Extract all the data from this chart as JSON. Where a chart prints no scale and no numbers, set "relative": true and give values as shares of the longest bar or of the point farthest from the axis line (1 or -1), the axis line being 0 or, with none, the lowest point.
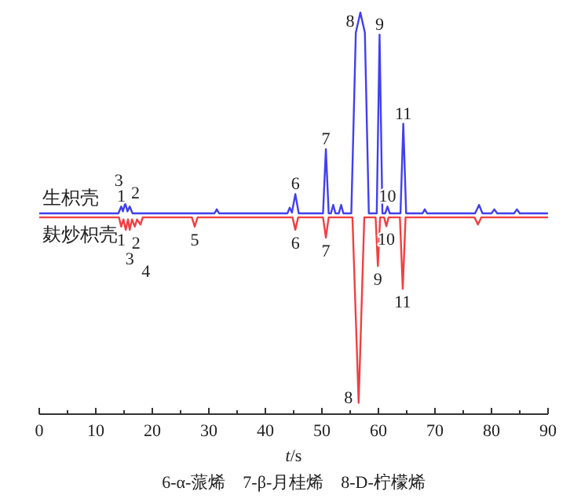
{
  "chart_data": {
    "type": "line",
    "relative": true,
    "tick_labels": "x",
    "xlabel": "t/s",
    "xlim": [
      0,
      90
    ],
    "xticks": [
      0,
      {
        "value": 5,
        "label": null
      },
      10,
      {
        "value": 15,
        "label": null
      },
      20,
      {
        "value": 25,
        "label": null
      },
      30,
      {
        "value": 35,
        "label": null
      },
      40,
      {
        "value": 45,
        "label": null
      },
      50,
      {
        "value": 55,
        "label": null
      },
      60,
      {
        "value": 65,
        "label": null
      },
      70,
      {
        "value": 75,
        "label": null
      },
      80,
      {
        "value": 85,
        "label": null
      },
      90
    ],
    "series": [
      {
        "name": "生枳壳",
        "color": "#4040f0",
        "x": [
          0,
          14.0,
          14.5,
          14.8,
          15.2,
          15.6,
          16.0,
          16.5,
          31.0,
          31.4,
          31.8,
          43.9,
          44.3,
          44.7,
          45.3,
          45.9,
          50.2,
          50.7,
          51.2,
          51.6,
          52.0,
          52.4,
          53.0,
          53.4,
          53.8,
          55.2,
          56.0,
          56.8,
          57.6,
          58.3,
          59.7,
          60.2,
          60.7,
          61.2,
          61.6,
          62.0,
          63.9,
          64.4,
          64.9,
          67.8,
          68.2,
          68.6,
          77.1,
          77.8,
          78.4,
          80,
          80.5,
          81,
          84,
          84.5,
          85,
          90
        ],
        "values": [
          0.5,
          0.5,
          0.517,
          0.505,
          0.525,
          0.505,
          0.517,
          0.5,
          0.5,
          0.51,
          0.5,
          0.5,
          0.514,
          0.502,
          0.548,
          0.5,
          0.5,
          0.66,
          0.5,
          0.5,
          0.521,
          0.5,
          0.5,
          0.521,
          0.5,
          0.5,
          0.95,
          1,
          0.95,
          0.5,
          0.5,
          0.945,
          0.5,
          0.5,
          0.517,
          0.5,
          0.5,
          0.723,
          0.5,
          0.5,
          0.51,
          0.5,
          0.5,
          0.521,
          0.5,
          0.5,
          0.51,
          0.5,
          0.5,
          0.51,
          0.5,
          0.5
        ]
      },
      {
        "name": "麸炒枳壳",
        "color": "#f04040",
        "x": [
          0,
          14.1,
          14.5,
          14.9,
          15.3,
          15.7,
          16.0,
          16.4,
          16.9,
          17.3,
          17.9,
          18.3,
          27.0,
          27.5,
          28.0,
          44.8,
          45.3,
          45.8,
          50.2,
          50.7,
          51.2,
          55.4,
          56.5,
          57.5,
          59.5,
          59.9,
          60.3,
          61.0,
          61.4,
          61.8,
          63.8,
          64.3,
          64.8,
          77.0,
          77.6,
          78.2,
          90
        ],
        "values": [
          0.49,
          0.49,
          0.467,
          0.485,
          0.459,
          0.485,
          0.459,
          0.485,
          0.467,
          0.485,
          0.472,
          0.49,
          0.49,
          0.467,
          0.49,
          0.49,
          0.459,
          0.49,
          0.49,
          0.44,
          0.49,
          0.49,
          0.028,
          0.49,
          0.49,
          0.369,
          0.49,
          0.49,
          0.468,
          0.49,
          0.49,
          0.312,
          0.49,
          0.49,
          0.472,
          0.49,
          0.49
        ]
      }
    ],
    "annotations": [
      {
        "text": "1",
        "x": 14.5,
        "y": 0.517
      },
      {
        "text": "2",
        "x": 15.2,
        "y": 0.525
      },
      {
        "text": "3",
        "x": 16.0,
        "y": 0.517
      },
      {
        "text": "6",
        "x": 45.3,
        "y": 0.548
      },
      {
        "text": "7",
        "x": 50.7,
        "y": 0.66
      },
      {
        "text": "8",
        "x": 56.8,
        "y": 1
      },
      {
        "text": "9",
        "x": 60.2,
        "y": 0.945
      },
      {
        "text": "10",
        "x": 61.6,
        "y": 0.517
      },
      {
        "text": "11",
        "x": 64.4,
        "y": 0.723
      },
      {
        "text": "1",
        "x": 14.5,
        "y": 0.467
      },
      {
        "text": "2",
        "x": 15.3,
        "y": 0.459
      },
      {
        "text": "3",
        "x": 16.0,
        "y": 0.459
      },
      {
        "text": "4",
        "x": 16.9,
        "y": 0.467
      },
      {
        "text": "5",
        "x": 27.5,
        "y": 0.467
      },
      {
        "text": "6",
        "x": 45.3,
        "y": 0.459
      },
      {
        "text": "7",
        "x": 50.7,
        "y": 0.44
      },
      {
        "text": "8",
        "x": 56.5,
        "y": 0.028
      },
      {
        "text": "9",
        "x": 59.9,
        "y": 0.369
      },
      {
        "text": "10",
        "x": 61.4,
        "y": 0.468
      },
      {
        "text": "11",
        "x": 64.3,
        "y": 0.312
      },
      "6-α-蒎烯　7-β-月桂烯　8-D-柠檬烯"
    ]
  }
}
